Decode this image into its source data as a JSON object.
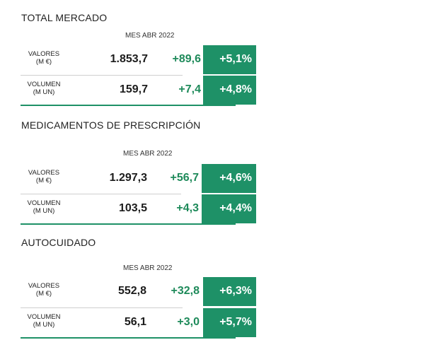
{
  "sections": [
    {
      "title": "TOTAL MERCADO",
      "period": "MES ABR 2022",
      "rows": [
        {
          "label1": "VALORES",
          "label2": "(M €)",
          "value": "1.853,7",
          "diff": "+89,6",
          "pct": "+5,1%"
        },
        {
          "label1": "VOLUMEN",
          "label2": "(M UN)",
          "value": "159,7",
          "diff": "+7,4",
          "pct": "+4,8%"
        }
      ]
    },
    {
      "title": "MEDICAMENTOS DE PRESCRIPCIÓN",
      "period": "MES ABR 2022",
      "rows": [
        {
          "label1": "VALORES",
          "label2": "(M €)",
          "value": "1.297,3",
          "diff": "+56,7",
          "pct": "+4,6%"
        },
        {
          "label1": "VOLUMEN",
          "label2": "(M UN)",
          "value": "103,5",
          "diff": "+4,3",
          "pct": "+4,4%"
        }
      ]
    },
    {
      "title": "AUTOCUIDADO",
      "period": "MES ABR 2022",
      "rows": [
        {
          "label1": "VALORES",
          "label2": "(M €)",
          "value": "552,8",
          "diff": "+32,8",
          "pct": "+6,3%"
        },
        {
          "label1": "VOLUMEN",
          "label2": "(M UN)",
          "value": "56,1",
          "diff": "+3,0",
          "pct": "+5,7%"
        }
      ]
    }
  ],
  "colors": {
    "accent_fill": "#1e9167",
    "positive_text": "#1e8a5a"
  }
}
